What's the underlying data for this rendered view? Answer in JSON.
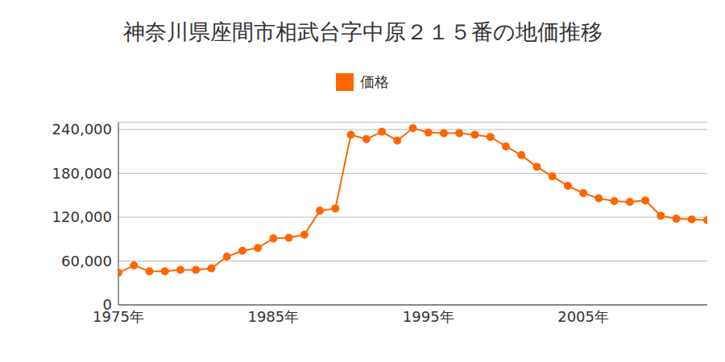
{
  "chart_data": {
    "type": "line",
    "title": "神奈川県座間市相武台字中原２１５番の地価推移",
    "x": [
      1975,
      1976,
      1977,
      1978,
      1979,
      1980,
      1981,
      1982,
      1983,
      1984,
      1985,
      1986,
      1987,
      1988,
      1989,
      1990,
      1991,
      1992,
      1993,
      1994,
      1995,
      1996,
      1997,
      1998,
      1999,
      2000,
      2001,
      2002,
      2003,
      2004,
      2005,
      2006,
      2007,
      2008,
      2009,
      2010,
      2011,
      2012,
      2013
    ],
    "series": [
      {
        "name": "価格",
        "color": "#ff6600",
        "values": [
          44000,
          54000,
          46000,
          46000,
          48000,
          48000,
          50000,
          66000,
          74000,
          78000,
          91000,
          92000,
          96000,
          129000,
          132000,
          233000,
          227000,
          237000,
          225000,
          242000,
          236000,
          235000,
          235000,
          233000,
          230000,
          217000,
          205000,
          189000,
          176000,
          163000,
          153000,
          146000,
          142000,
          141000,
          143000,
          122000,
          118000,
          117000,
          116000
        ]
      }
    ],
    "xlim": [
      1975,
      2013
    ],
    "xticks": [
      {
        "value": 1975,
        "label": "1975年"
      },
      {
        "value": 1985,
        "label": "1985年"
      },
      {
        "value": 1995,
        "label": "1995年"
      },
      {
        "value": 2005,
        "label": "2005年"
      }
    ],
    "ylim": [
      0,
      250000
    ],
    "yticks": [
      0,
      {
        "value": 60000,
        "label": "60,000"
      },
      {
        "value": 120000,
        "label": "120,000"
      },
      {
        "value": 180000,
        "label": "180,000"
      },
      {
        "value": 240000,
        "label": "240,000"
      }
    ],
    "grid": true,
    "legend": "top",
    "marker": "circle"
  }
}
